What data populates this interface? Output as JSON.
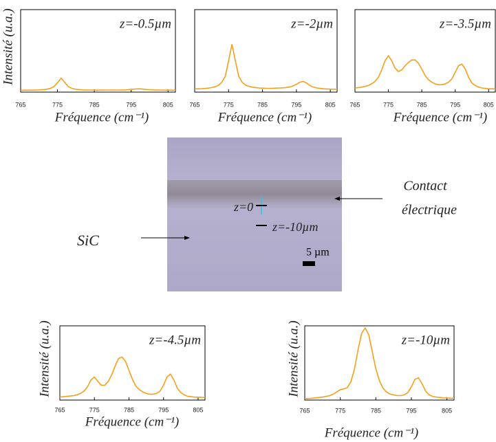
{
  "chart_data": [
    {
      "type": "line",
      "annotation": "z=-0.5µm",
      "x_label": "Fréquence (cm⁻¹)",
      "y_label": "Intensité (u.a.)",
      "xlim": [
        765,
        807
      ],
      "xticks": [
        765,
        775,
        785,
        795,
        805
      ],
      "ylim": [
        0,
        1
      ],
      "x": [
        765,
        766,
        767,
        768,
        769,
        770,
        771,
        772,
        773,
        774,
        775,
        776,
        777,
        778,
        779,
        780,
        781,
        782,
        783,
        784,
        785,
        786,
        787,
        788,
        789,
        790,
        791,
        792,
        793,
        794,
        795,
        796,
        797,
        798,
        799,
        800,
        801,
        802,
        803,
        804,
        805,
        806,
        807
      ],
      "series": [
        {
          "color": "#f5a01a",
          "values": [
            0.02,
            0.023,
            0.023,
            0.024,
            0.025,
            0.027,
            0.03,
            0.034,
            0.044,
            0.065,
            0.115,
            0.17,
            0.115,
            0.065,
            0.044,
            0.034,
            0.03,
            0.027,
            0.026,
            0.025,
            0.024,
            0.024,
            0.024,
            0.025,
            0.025,
            0.026,
            0.025,
            0.026,
            0.027,
            0.029,
            0.032,
            0.037,
            0.04,
            0.037,
            0.032,
            0.029,
            0.027,
            0.026,
            0.025,
            0.024,
            0.024,
            0.023,
            0.023
          ]
        }
      ]
    },
    {
      "type": "line",
      "annotation": "z=-2µm",
      "x_label": "Fréquence (cm⁻¹)",
      "xlim": [
        765,
        807
      ],
      "xticks": [
        765,
        775,
        785,
        795,
        805
      ],
      "ylim": [
        0,
        1
      ],
      "x": [
        765,
        766,
        767,
        768,
        769,
        770,
        771,
        772,
        773,
        774,
        775,
        776,
        777,
        778,
        779,
        780,
        781,
        782,
        783,
        784,
        785,
        786,
        787,
        788,
        789,
        790,
        791,
        792,
        793,
        794,
        795,
        796,
        797,
        798,
        799,
        800,
        801,
        802,
        803,
        804,
        805,
        806,
        807
      ],
      "series": [
        {
          "color": "#f5a01a",
          "values": [
            0.04,
            0.04,
            0.041,
            0.044,
            0.048,
            0.055,
            0.065,
            0.082,
            0.12,
            0.19,
            0.38,
            0.58,
            0.38,
            0.19,
            0.12,
            0.085,
            0.07,
            0.06,
            0.055,
            0.05,
            0.048,
            0.046,
            0.046,
            0.046,
            0.048,
            0.05,
            0.052,
            0.056,
            0.062,
            0.075,
            0.095,
            0.12,
            0.13,
            0.11,
            0.08,
            0.06,
            0.05,
            0.045,
            0.04,
            0.038,
            0.036,
            0.035,
            0.034
          ]
        }
      ]
    },
    {
      "type": "line",
      "annotation": "z=-3.5µm",
      "x_label": "Fréquence (cm⁻¹)",
      "xlim": [
        765,
        807
      ],
      "xticks": [
        765,
        775,
        785,
        795,
        805
      ],
      "ylim": [
        0,
        1
      ],
      "x": [
        765,
        766,
        767,
        768,
        769,
        770,
        771,
        772,
        773,
        774,
        775,
        776,
        777,
        778,
        779,
        780,
        781,
        782,
        783,
        784,
        785,
        786,
        787,
        788,
        789,
        790,
        791,
        792,
        793,
        794,
        795,
        796,
        797,
        798,
        799,
        800,
        801,
        802,
        803,
        804,
        805,
        806,
        807
      ],
      "series": [
        {
          "color": "#f5a01a",
          "values": [
            0.05,
            0.055,
            0.06,
            0.07,
            0.08,
            0.1,
            0.13,
            0.18,
            0.27,
            0.38,
            0.44,
            0.38,
            0.29,
            0.25,
            0.27,
            0.32,
            0.36,
            0.39,
            0.39,
            0.35,
            0.28,
            0.2,
            0.15,
            0.12,
            0.1,
            0.09,
            0.09,
            0.1,
            0.12,
            0.16,
            0.24,
            0.32,
            0.34,
            0.28,
            0.18,
            0.11,
            0.08,
            0.06,
            0.05,
            0.045,
            0.04,
            0.04,
            0.038
          ]
        }
      ]
    },
    {
      "type": "line",
      "annotation": "z=-4.5µm",
      "x_label": "Fréquence (cm⁻¹)",
      "y_label": "Intensité (u.a.)",
      "xlim": [
        765,
        807
      ],
      "xticks": [
        765,
        775,
        785,
        795,
        805
      ],
      "ylim": [
        0,
        1
      ],
      "x": [
        765,
        766,
        767,
        768,
        769,
        770,
        771,
        772,
        773,
        774,
        775,
        776,
        777,
        778,
        779,
        780,
        781,
        782,
        783,
        784,
        785,
        786,
        787,
        788,
        789,
        790,
        791,
        792,
        793,
        794,
        795,
        796,
        797,
        798,
        799,
        800,
        801,
        802,
        803,
        804,
        805,
        806,
        807
      ],
      "series": [
        {
          "color": "#f5a01a",
          "values": [
            0.04,
            0.045,
            0.05,
            0.055,
            0.06,
            0.07,
            0.09,
            0.12,
            0.18,
            0.27,
            0.31,
            0.25,
            0.2,
            0.2,
            0.25,
            0.34,
            0.46,
            0.56,
            0.58,
            0.52,
            0.4,
            0.28,
            0.19,
            0.14,
            0.11,
            0.09,
            0.08,
            0.08,
            0.09,
            0.12,
            0.2,
            0.31,
            0.35,
            0.27,
            0.16,
            0.1,
            0.07,
            0.05,
            0.045,
            0.04,
            0.038,
            0.036,
            0.035
          ]
        }
      ]
    },
    {
      "type": "line",
      "annotation": "z=-10µm",
      "x_label": "Fréquence (cm⁻¹)",
      "y_label": "Intensité (u.a.)",
      "xlim": [
        765,
        807
      ],
      "xticks": [
        765,
        775,
        785,
        795,
        805
      ],
      "ylim": [
        0,
        1
      ],
      "x": [
        765,
        766,
        767,
        768,
        769,
        770,
        771,
        772,
        773,
        774,
        775,
        776,
        777,
        778,
        779,
        780,
        781,
        782,
        783,
        784,
        785,
        786,
        787,
        788,
        789,
        790,
        791,
        792,
        793,
        794,
        795,
        796,
        797,
        798,
        799,
        800,
        801,
        802,
        803,
        804,
        805,
        806,
        807
      ],
      "series": [
        {
          "color": "#f5a01a",
          "values": [
            0.02,
            0.02,
            0.025,
            0.03,
            0.035,
            0.04,
            0.05,
            0.06,
            0.08,
            0.11,
            0.14,
            0.15,
            0.17,
            0.25,
            0.42,
            0.68,
            0.9,
            0.97,
            0.88,
            0.65,
            0.42,
            0.26,
            0.16,
            0.11,
            0.08,
            0.07,
            0.06,
            0.06,
            0.07,
            0.1,
            0.18,
            0.28,
            0.3,
            0.22,
            0.12,
            0.07,
            0.05,
            0.04,
            0.035,
            0.03,
            0.028,
            0.026,
            0.025
          ]
        }
      ]
    }
  ],
  "micrograph": {
    "sic": "SiC",
    "contact_1": "Contact",
    "contact_2": "électrique",
    "z_top": "z=0",
    "z_bottom": "z=-10µm",
    "scale": "5 µm"
  }
}
